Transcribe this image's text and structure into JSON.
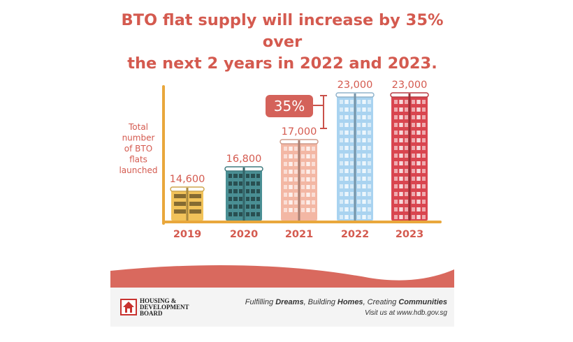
{
  "title": {
    "line1": "BTO flat supply will increase by 35% over",
    "line2": "the next 2 years in 2022 and 2023."
  },
  "colors": {
    "accent": "#d45a4f",
    "axis": "#e9a73c",
    "bracket": "#c9514a",
    "footer_wave": "#d9695e"
  },
  "chart_data": {
    "type": "bar",
    "ylabel": "Total number of BTO flats launched",
    "ylabel_lines": [
      "Total",
      "number",
      "of BTO",
      "flats",
      "launched"
    ],
    "categories": [
      "2019",
      "2020",
      "2021",
      "2022",
      "2023"
    ],
    "values": [
      14600,
      16800,
      17000,
      23000,
      23000
    ],
    "value_labels": [
      "14,600",
      "16,800",
      "17,000",
      "23,000",
      "23,000"
    ],
    "bar_colors": [
      "#f2c35a",
      "#4a8f94",
      "#f3b7a4",
      "#a9d3f0",
      "#d9454f"
    ],
    "annotation": {
      "text": "35%",
      "from": 17000,
      "to": 23000
    }
  },
  "footer": {
    "org_lines": [
      "HOUSING &",
      "DEVELOPMENT",
      "BOARD"
    ],
    "slogan_parts": [
      {
        "text": "Fulfilling ",
        "bold": false
      },
      {
        "text": "Dreams",
        "bold": true
      },
      {
        "text": ", Building ",
        "bold": false
      },
      {
        "text": "Homes",
        "bold": true
      },
      {
        "text": ", Creating ",
        "bold": false
      },
      {
        "text": "Communities",
        "bold": true
      }
    ],
    "visit": "Visit us at www.hdb.gov.sg"
  }
}
